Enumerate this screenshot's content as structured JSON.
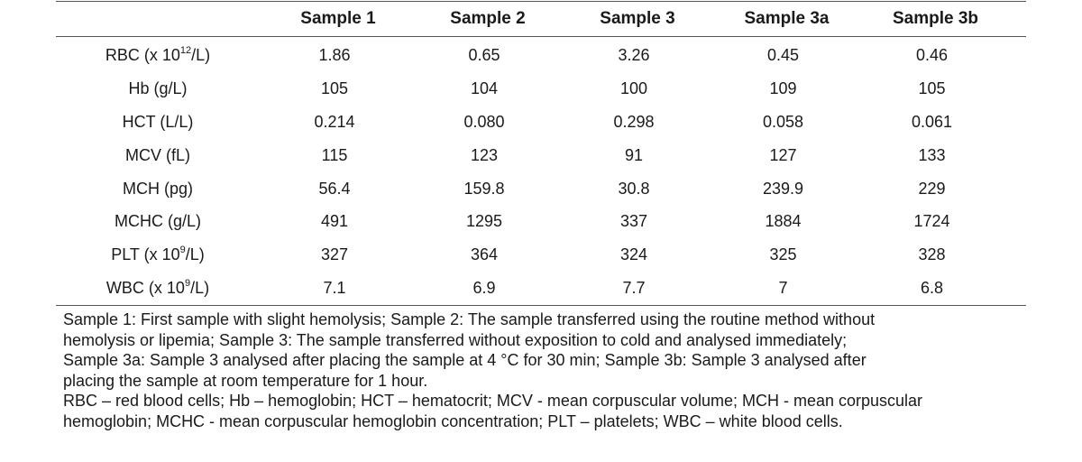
{
  "table": {
    "headers": [
      "",
      "Sample 1",
      "Sample 2",
      "Sample 3",
      "Sample 3a",
      "Sample 3b"
    ],
    "rows": [
      {
        "label_pre": "RBC (x 10",
        "label_sup": "12",
        "label_post": "/L)",
        "values": [
          "1.86",
          "0.65",
          "3.26",
          "0.45",
          "0.46"
        ]
      },
      {
        "label_pre": "Hb (g/L)",
        "label_sup": "",
        "label_post": "",
        "values": [
          "105",
          "104",
          "100",
          "109",
          "105"
        ]
      },
      {
        "label_pre": "HCT (L/L)",
        "label_sup": "",
        "label_post": "",
        "values": [
          "0.214",
          "0.080",
          "0.298",
          "0.058",
          "0.061"
        ]
      },
      {
        "label_pre": "MCV (fL)",
        "label_sup": "",
        "label_post": "",
        "values": [
          "115",
          "123",
          "91",
          "127",
          "133"
        ]
      },
      {
        "label_pre": "MCH (pg)",
        "label_sup": "",
        "label_post": "",
        "values": [
          "56.4",
          "159.8",
          "30.8",
          "239.9",
          "229"
        ]
      },
      {
        "label_pre": "MCHC (g/L)",
        "label_sup": "",
        "label_post": "",
        "values": [
          "491",
          "1295",
          "337",
          "1884",
          "1724"
        ]
      },
      {
        "label_pre": "PLT (x 10",
        "label_sup": "9",
        "label_post": "/L)",
        "values": [
          "327",
          "364",
          "324",
          "325",
          "328"
        ]
      },
      {
        "label_pre": "WBC (x 10",
        "label_sup": "9",
        "label_post": "/L)",
        "values": [
          "7.1",
          "6.9",
          "7.7",
          "7",
          "6.8"
        ]
      }
    ]
  },
  "notes": {
    "line1": "Sample 1: First sample with slight hemolysis; Sample 2: The sample transferred using the routine method without",
    "line2": "hemolysis or lipemia; Sample 3: The sample transferred without exposition to cold and analysed immediately;",
    "line3": "Sample 3a: Sample 3 analysed after placing the sample at 4 °C for 30 min; Sample 3b: Sample 3 analysed after",
    "line4": "placing the sample at room temperature for 1 hour.",
    "line5": "RBC – red blood cells; Hb – hemoglobin; HCT – hematocrit; MCV - mean corpuscular volume; MCH - mean corpuscular",
    "line6": "hemoglobin; MCHC - mean corpuscular hemoglobin concentration; PLT – platelets; WBC – white blood cells."
  }
}
